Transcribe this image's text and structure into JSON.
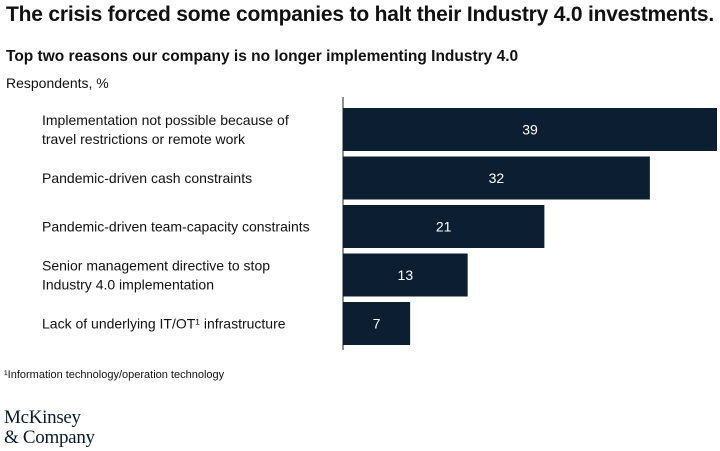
{
  "header": {
    "title": "The crisis forced some companies to halt their Industry 4.0 investments.",
    "subtitle": "Top two reasons our company is no longer implementing Industry 4.0",
    "unit": "Respondents, %"
  },
  "chart_data": {
    "type": "bar",
    "orientation": "horizontal",
    "categories": [
      "Implementation not possible because of travel restrictions or remote work",
      "Pandemic-driven cash constraints",
      "Pandemic-driven team-capacity constraints",
      "Senior management directive to stop Industry 4.0 implementation",
      "Lack of underlying IT/OT¹ infrastructure"
    ],
    "category_lines": [
      [
        "Implementation not possible because of",
        "travel restrictions or remote work"
      ],
      [
        "Pandemic-driven cash constraints"
      ],
      [
        "Pandemic-driven team-capacity constraints"
      ],
      [
        "Senior management directive to stop",
        "Industry 4.0 implementation"
      ],
      [
        "Lack of underlying IT/OT¹ infrastructure"
      ]
    ],
    "values": [
      39,
      32,
      21,
      13,
      7
    ],
    "xlim": [
      0,
      39
    ],
    "grid": false,
    "bar_color": "#0c1e32",
    "value_label_color": "#ffffff"
  },
  "footer": {
    "footnote": "¹Information technology/operation technology",
    "logo_line1": "McKinsey",
    "logo_line2": "& Company"
  }
}
